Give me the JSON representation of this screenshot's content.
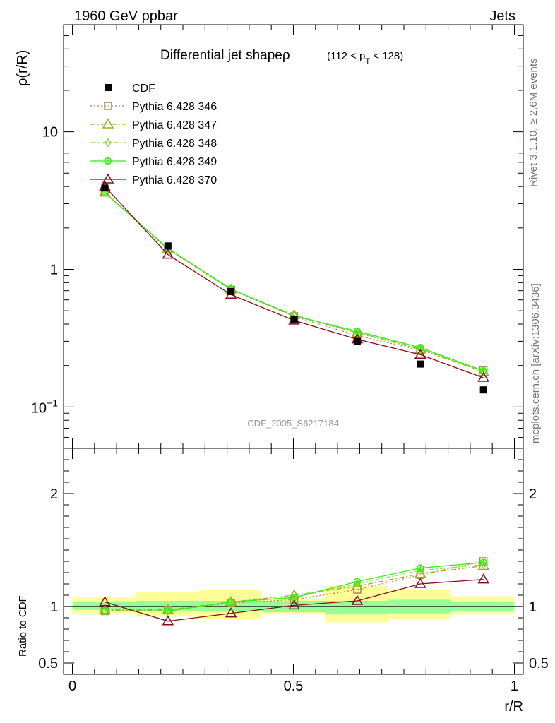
{
  "header": {
    "left": "1960 GeV ppbar",
    "right": "Jets"
  },
  "side_text": {
    "rivet": "Rivet 3.1.10, ≥ 2.6M events",
    "mcplots": "mcplots.cern.ch [arXiv:1306.3436]"
  },
  "watermark": "CDF_2005_S6217184",
  "chart_data": [
    {
      "type": "line",
      "title": "Differential jet shapeρ",
      "title_cut": {
        "prefix": "(112 < p",
        "sub": "T",
        "suffix": " < 128)"
      },
      "ylabel": "ρ(r/R)",
      "xlabel": "r/R",
      "yscale": "log",
      "ylim": [
        0.05,
        60
      ],
      "xlim": [
        -0.02,
        1.02
      ],
      "yticks": [
        {
          "value": 0.1,
          "base": "10",
          "exp": "−1"
        },
        {
          "value": 1,
          "label": "1"
        },
        {
          "value": 10,
          "label": "10"
        }
      ],
      "legend_position": "top-left",
      "x": [
        0.075,
        0.225,
        0.375,
        0.525,
        0.675,
        0.825,
        0.975
      ],
      "data": {
        "name": "CDF",
        "color": "#000000",
        "marker": "filled-square",
        "values": [
          3.9,
          1.48,
          0.69,
          0.43,
          0.3,
          0.205,
          0.133
        ]
      },
      "series": [
        {
          "name": "Pythia 6.428 346",
          "color": "#b5834a",
          "dash": "2,3",
          "marker": "open-square",
          "values": [
            3.62,
            1.4,
            0.71,
            0.455,
            0.33,
            0.258,
            0.185
          ]
        },
        {
          "name": "Pythia 6.428 347",
          "color": "#9ab020",
          "dash": "7,3,2,3",
          "marker": "open-triangle",
          "values": [
            3.62,
            1.41,
            0.715,
            0.465,
            0.345,
            0.262,
            0.18
          ]
        },
        {
          "name": "Pythia 6.428 348",
          "color": "#88e040",
          "dash": "8,3,2,3",
          "marker": "open-diamond",
          "values": [
            3.62,
            1.42,
            0.716,
            0.462,
            0.35,
            0.265,
            0.182
          ]
        },
        {
          "name": "Pythia 6.428 349",
          "color": "#33ee11",
          "dash": "",
          "marker": "crossed-circle",
          "values": [
            3.6,
            1.42,
            0.72,
            0.458,
            0.355,
            0.27,
            0.183
          ]
        },
        {
          "name": "Pythia 6.428 370",
          "color": "#8b0a1a",
          "dash": "",
          "marker": "open-triangle",
          "values": [
            4.0,
            1.28,
            0.655,
            0.425,
            0.31,
            0.24,
            0.163
          ]
        }
      ]
    },
    {
      "type": "line",
      "ylabel": "Ratio to CDF",
      "xlabel": "r/R",
      "ylim": [
        0.4,
        2.4
      ],
      "xlim": [
        -0.02,
        1.02
      ],
      "yticks": [
        {
          "value": 0.5,
          "label": "0.5"
        },
        {
          "value": 1,
          "label": "1"
        },
        {
          "value": 2,
          "label": "2"
        }
      ],
      "xticks": [
        {
          "value": 0,
          "label": "0"
        },
        {
          "value": 0.5,
          "label": "0.5"
        },
        {
          "value": 1,
          "label": "1"
        }
      ],
      "bands": {
        "edges": [
          0,
          0.143,
          0.286,
          0.429,
          0.571,
          0.714,
          0.857,
          1.0
        ],
        "inner": [
          [
            0.97,
            1.04
          ],
          [
            0.96,
            1.05
          ],
          [
            0.96,
            1.05
          ],
          [
            0.95,
            1.05
          ],
          [
            0.93,
            1.05
          ],
          [
            0.94,
            1.06
          ],
          [
            0.96,
            1.04
          ]
        ],
        "outer": [
          [
            0.94,
            1.08
          ],
          [
            0.91,
            1.13
          ],
          [
            0.89,
            1.15
          ],
          [
            0.93,
            1.07
          ],
          [
            0.86,
            1.18
          ],
          [
            0.89,
            1.15
          ],
          [
            0.93,
            1.09
          ]
        ],
        "inner_color": "#99ff99",
        "outer_color": "#ffff99"
      },
      "series": [
        {
          "name": "Pythia 6.428 346",
          "values": [
            0.96,
            0.97,
            1.03,
            1.06,
            1.15,
            1.28,
            1.4
          ]
        },
        {
          "name": "Pythia 6.428 347",
          "values": [
            0.97,
            0.97,
            1.04,
            1.1,
            1.18,
            1.29,
            1.36
          ]
        },
        {
          "name": "Pythia 6.428 348",
          "values": [
            0.96,
            0.96,
            1.04,
            1.08,
            1.2,
            1.32,
            1.37
          ]
        },
        {
          "name": "Pythia 6.428 349",
          "values": [
            0.96,
            0.96,
            1.04,
            1.08,
            1.22,
            1.34,
            1.39
          ]
        },
        {
          "name": "Pythia 6.428 370",
          "values": [
            1.04,
            0.87,
            0.94,
            1.01,
            1.05,
            1.2,
            1.24
          ]
        }
      ]
    }
  ]
}
